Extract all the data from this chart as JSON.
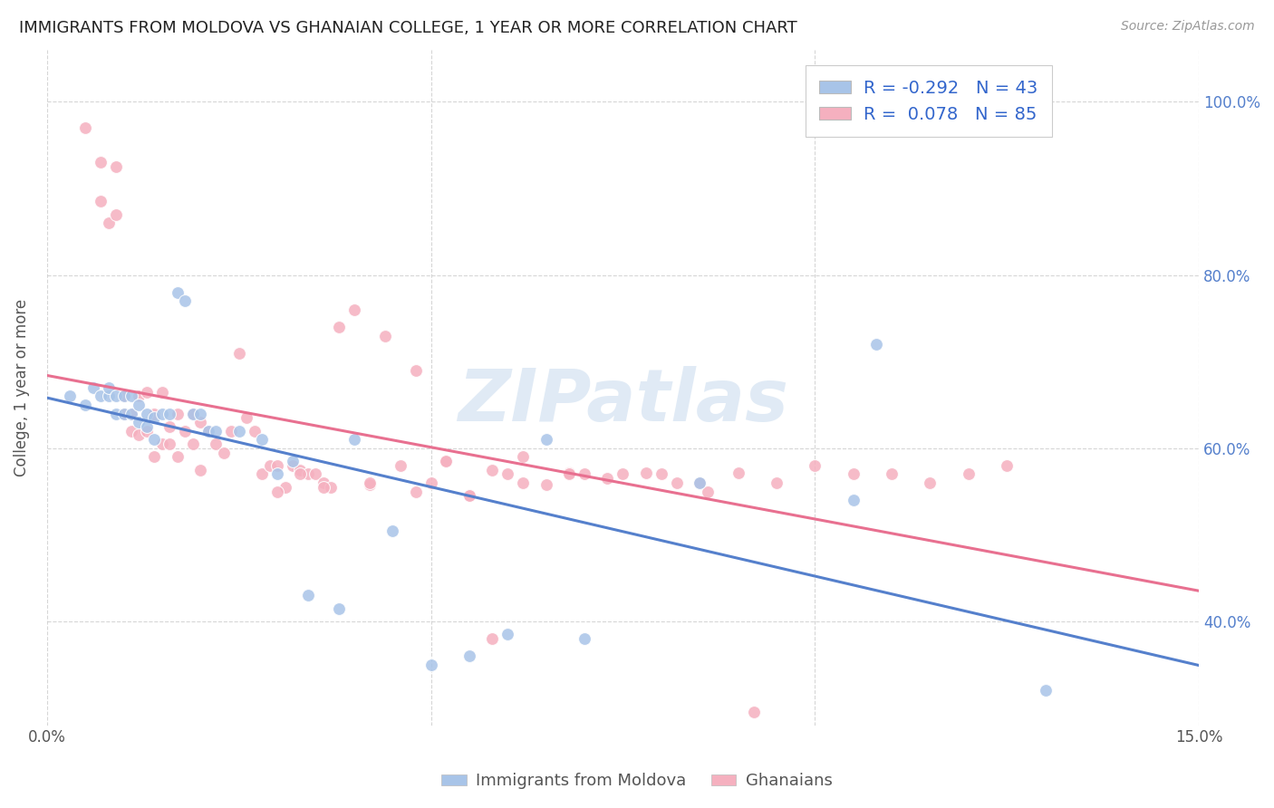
{
  "title": "IMMIGRANTS FROM MOLDOVA VS GHANAIAN COLLEGE, 1 YEAR OR MORE CORRELATION CHART",
  "source": "Source: ZipAtlas.com",
  "ylabel_label": "College, 1 year or more",
  "legend_label1": "Immigrants from Moldova",
  "legend_label2": "Ghanaians",
  "r1": "-0.292",
  "n1": "43",
  "r2": "0.078",
  "n2": "85",
  "blue_color": "#a8c4e8",
  "pink_color": "#f5b0bf",
  "blue_line_color": "#5580cc",
  "pink_line_color": "#e87090",
  "watermark": "ZIPatlas",
  "xlim": [
    0.0,
    0.15
  ],
  "ylim": [
    0.28,
    1.06
  ],
  "ytick_vals": [
    0.4,
    0.6,
    0.8,
    1.0
  ],
  "ytick_labels": [
    "40.0%",
    "60.0%",
    "80.0%",
    "100.0%"
  ],
  "blue_scatter_x": [
    0.003,
    0.005,
    0.006,
    0.007,
    0.008,
    0.008,
    0.009,
    0.009,
    0.01,
    0.01,
    0.011,
    0.011,
    0.012,
    0.012,
    0.013,
    0.013,
    0.014,
    0.014,
    0.015,
    0.016,
    0.017,
    0.018,
    0.019,
    0.02,
    0.021,
    0.022,
    0.025,
    0.028,
    0.03,
    0.032,
    0.034,
    0.038,
    0.04,
    0.045,
    0.05,
    0.055,
    0.06,
    0.065,
    0.07,
    0.085,
    0.105,
    0.108,
    0.13
  ],
  "blue_scatter_y": [
    0.66,
    0.65,
    0.67,
    0.66,
    0.66,
    0.67,
    0.64,
    0.66,
    0.64,
    0.66,
    0.64,
    0.66,
    0.63,
    0.65,
    0.625,
    0.64,
    0.61,
    0.635,
    0.64,
    0.64,
    0.78,
    0.77,
    0.64,
    0.64,
    0.62,
    0.62,
    0.62,
    0.61,
    0.57,
    0.585,
    0.43,
    0.415,
    0.61,
    0.505,
    0.35,
    0.36,
    0.385,
    0.61,
    0.38,
    0.56,
    0.54,
    0.72,
    0.32
  ],
  "pink_scatter_x": [
    0.005,
    0.007,
    0.007,
    0.008,
    0.009,
    0.009,
    0.01,
    0.01,
    0.011,
    0.011,
    0.012,
    0.012,
    0.013,
    0.013,
    0.014,
    0.014,
    0.015,
    0.015,
    0.016,
    0.016,
    0.017,
    0.017,
    0.018,
    0.019,
    0.019,
    0.02,
    0.02,
    0.021,
    0.022,
    0.023,
    0.024,
    0.025,
    0.026,
    0.027,
    0.028,
    0.029,
    0.03,
    0.031,
    0.032,
    0.033,
    0.034,
    0.035,
    0.036,
    0.037,
    0.038,
    0.04,
    0.042,
    0.044,
    0.046,
    0.048,
    0.05,
    0.052,
    0.055,
    0.058,
    0.06,
    0.062,
    0.065,
    0.068,
    0.07,
    0.075,
    0.08,
    0.085,
    0.09,
    0.095,
    0.1,
    0.105,
    0.11,
    0.115,
    0.12,
    0.125,
    0.03,
    0.033,
    0.036,
    0.042,
    0.048,
    0.052,
    0.055,
    0.058,
    0.062,
    0.068,
    0.073,
    0.078,
    0.082,
    0.086,
    0.092
  ],
  "pink_scatter_y": [
    0.97,
    0.885,
    0.93,
    0.86,
    0.87,
    0.925,
    0.64,
    0.66,
    0.64,
    0.62,
    0.66,
    0.615,
    0.665,
    0.62,
    0.64,
    0.59,
    0.665,
    0.605,
    0.625,
    0.605,
    0.64,
    0.59,
    0.62,
    0.64,
    0.605,
    0.63,
    0.575,
    0.62,
    0.605,
    0.595,
    0.62,
    0.71,
    0.635,
    0.62,
    0.57,
    0.58,
    0.58,
    0.555,
    0.58,
    0.575,
    0.57,
    0.57,
    0.56,
    0.555,
    0.74,
    0.76,
    0.558,
    0.73,
    0.58,
    0.69,
    0.56,
    0.585,
    0.545,
    0.575,
    0.57,
    0.56,
    0.558,
    0.572,
    0.57,
    0.57,
    0.57,
    0.56,
    0.572,
    0.56,
    0.58,
    0.57,
    0.57,
    0.56,
    0.57,
    0.58,
    0.55,
    0.57,
    0.555,
    0.56,
    0.55,
    0.585,
    0.545,
    0.38,
    0.59,
    0.57,
    0.565,
    0.572,
    0.56,
    0.55,
    0.295
  ]
}
